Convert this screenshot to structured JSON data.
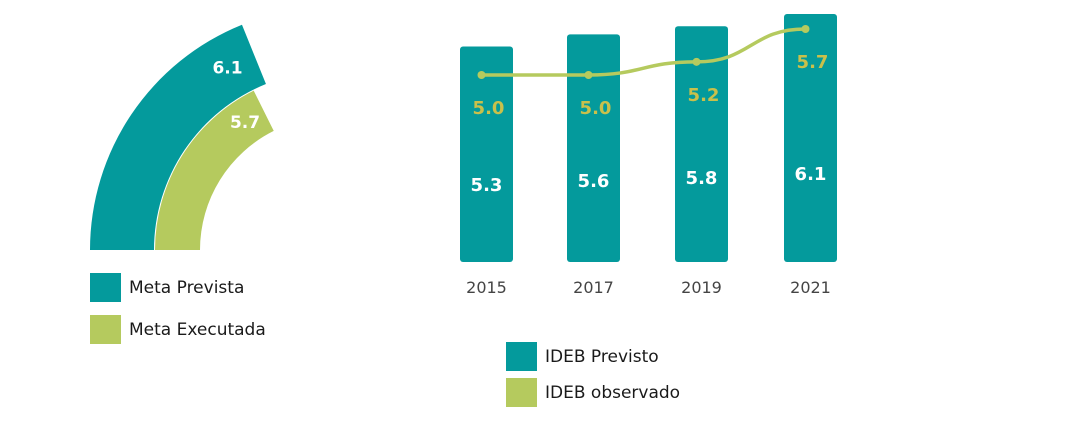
{
  "colors": {
    "teal": "#049a9c",
    "green": "#b5ca5e",
    "line_label": "#c9c04b",
    "white": "#ffffff",
    "tick": "#444444"
  },
  "chart_data": [
    {
      "type": "pie",
      "variant": "nested-quarter-arc",
      "series": [
        {
          "name": "Meta Prevista",
          "value": 6.1,
          "label": "6.1"
        },
        {
          "name": "Meta Executada",
          "value": 5.7,
          "label": "5.7"
        }
      ],
      "legend": [
        "Meta Prevista",
        "Meta Executada"
      ],
      "legend_position": "bottom-left"
    },
    {
      "type": "bar",
      "categories": [
        "2015",
        "2017",
        "2019",
        "2021"
      ],
      "series": [
        {
          "name": "IDEB Previsto",
          "type": "bar",
          "values": [
            5.3,
            5.6,
            5.8,
            6.1
          ],
          "labels": [
            "5.3",
            "5.6",
            "5.8",
            "6.1"
          ]
        },
        {
          "name": "IDEB observado",
          "type": "line",
          "values": [
            5.0,
            5.0,
            5.2,
            5.7
          ],
          "labels": [
            "5.0",
            "5.0",
            "5.2",
            "5.7"
          ]
        }
      ],
      "legend": [
        "IDEB Previsto",
        "IDEB observado"
      ],
      "legend_position": "bottom",
      "grid": false
    }
  ]
}
